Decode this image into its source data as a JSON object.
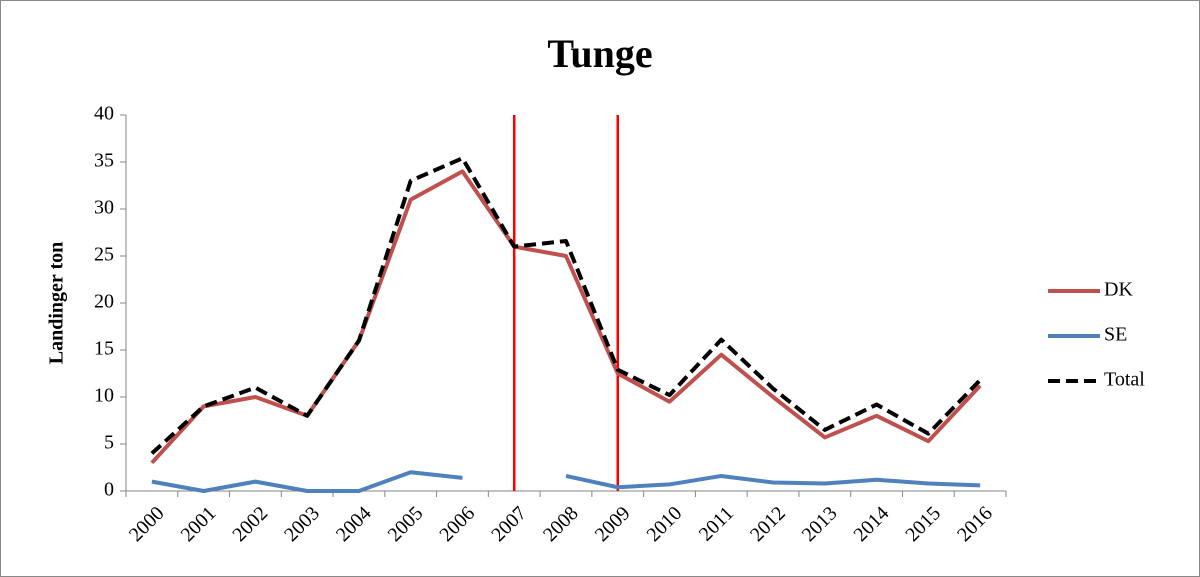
{
  "chart_data": {
    "type": "line",
    "title": "Tunge",
    "y_label": "Landinger ton",
    "categories": [
      "2000",
      "2001",
      "2002",
      "2003",
      "2004",
      "2005",
      "2006",
      "2007",
      "2008",
      "2009",
      "2010",
      "2011",
      "2012",
      "2013",
      "2014",
      "2015",
      "2016"
    ],
    "series": [
      {
        "name": "DK",
        "color": "#c0504d",
        "dash": "solid",
        "values": [
          3,
          9,
          10,
          8,
          16,
          31,
          34,
          26,
          25,
          12.5,
          9.5,
          14.5,
          10,
          5.7,
          8,
          5.3,
          11.2
        ]
      },
      {
        "name": "SE",
        "color": "#4f81bd",
        "dash": "solid",
        "values": [
          1,
          0,
          1,
          0,
          0,
          2,
          1.4,
          null,
          1.6,
          0.4,
          0.7,
          1.6,
          0.9,
          0.8,
          1.2,
          0.8,
          0.6
        ]
      },
      {
        "name": "Total",
        "color": "#000000",
        "dash": "dashed",
        "values": [
          4,
          9,
          11,
          8,
          16,
          33,
          35.4,
          26,
          26.6,
          12.9,
          10.2,
          16.1,
          10.9,
          6.5,
          9.2,
          6.1,
          11.8
        ]
      }
    ],
    "ylim": [
      0,
      40
    ],
    "yticks": [
      0,
      5,
      10,
      15,
      20,
      25,
      30,
      35,
      40
    ],
    "vlines": [
      "2007",
      "2009"
    ],
    "vline_color": "#ff0000",
    "legend": "right",
    "grid": false
  }
}
